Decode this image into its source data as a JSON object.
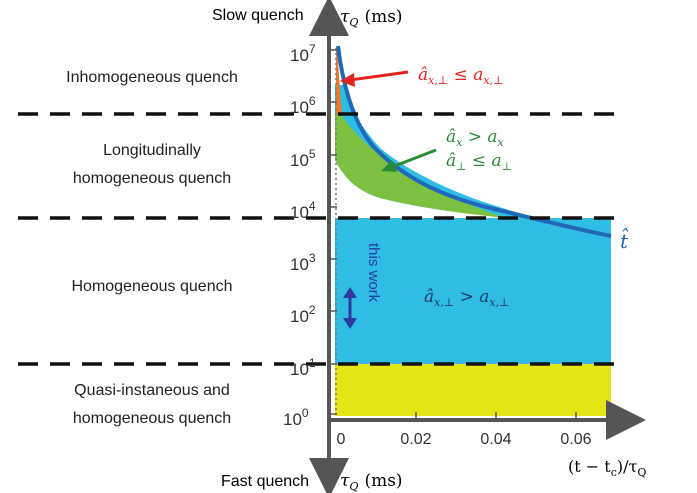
{
  "axis": {
    "top_label": "Slow quench",
    "bottom_label": "Fast quench",
    "y_symbol": "τ",
    "y_symbol_sub": "Q",
    "y_unit": "(ms)",
    "x_label": "(t − t",
    "x_label_sub": "c",
    "x_label_end": ")/τ",
    "x_label_end_sub": "Q",
    "y_tick_base": "10",
    "y_tick_exponents": [
      "0",
      "1",
      "2",
      "3",
      "4",
      "5",
      "6",
      "7"
    ],
    "x_ticks": [
      "0",
      "0.02",
      "0.04",
      "0.06"
    ]
  },
  "regimes": [
    {
      "label_lines": [
        "Inhomogeneous quench"
      ]
    },
    {
      "label_lines": [
        "Longitudinally",
        "homogeneous quench"
      ]
    },
    {
      "label_lines": [
        "Homogeneous quench"
      ]
    },
    {
      "label_lines": [
        "Quasi-instaneous and",
        "homogeneous quench"
      ]
    }
  ],
  "annotations": {
    "inhomogeneous_condition": "â",
    "inhomogeneous_condition_sub": "x,⊥",
    "inhomogeneous_condition_rest": " ≤ a",
    "inhomogeneous_condition_rest_sub": "x,⊥",
    "long_condition_1": "â",
    "long_condition_1_sub": "x",
    "long_condition_1_rest": " > a",
    "long_condition_1_rest_sub": "x",
    "long_condition_2": "â",
    "long_condition_2_sub": "⊥",
    "long_condition_2_rest": " ≤ a",
    "long_condition_2_rest_sub": "⊥",
    "homog_condition": "â",
    "homog_condition_sub": "x,⊥",
    "homog_condition_rest": " > a",
    "homog_condition_rest_sub": "x,⊥",
    "curve_label": "t̂",
    "this_work": "this work"
  },
  "colors": {
    "red": "#e8402c",
    "green": "#7dc142",
    "cyan": "#2fbde3",
    "yellow": "#e6e617",
    "orange": "#f07a2a",
    "blue_curve": "#2068b8",
    "arrow_red": "#e3241d",
    "arrow_green": "#2a8a36",
    "this_work": "#2b3a9e",
    "axis": "#555555"
  }
}
